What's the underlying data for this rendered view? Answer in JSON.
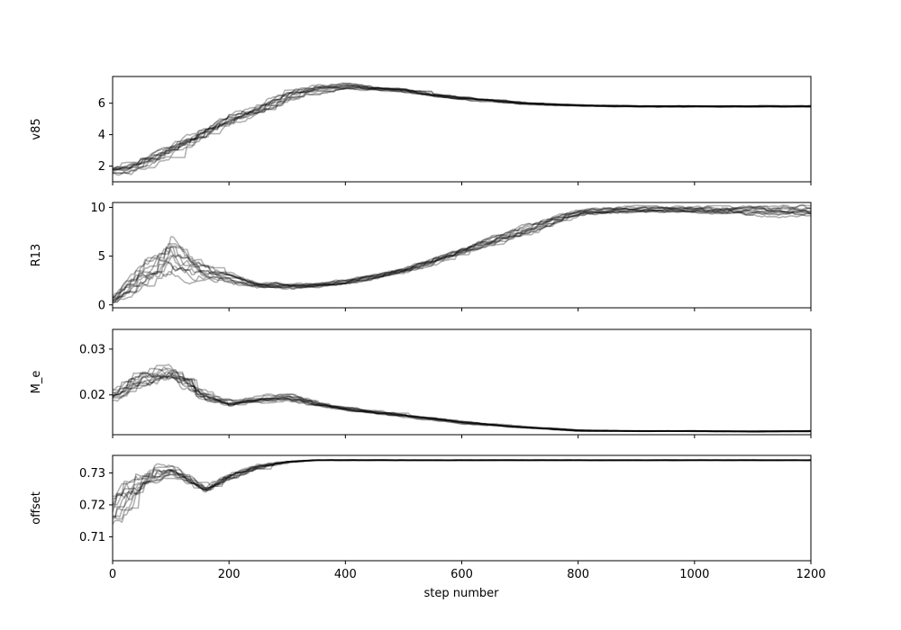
{
  "chart_data": {
    "type": "line",
    "xlabel": "step number",
    "xlim": [
      0,
      1200
    ],
    "xticks": [
      "0",
      "200",
      "400",
      "600",
      "800",
      "1000",
      "1200"
    ],
    "xtick_values": [
      0,
      200,
      400,
      600,
      800,
      1000,
      1200
    ],
    "grid": false,
    "line_color": "#000000",
    "line_alpha": 0.3,
    "n_walkers": 12,
    "panels": [
      {
        "ylabel": "v85",
        "ylim": [
          1.0,
          7.7
        ],
        "yticks": [
          "2",
          "4",
          "6"
        ],
        "ytick_values": [
          2,
          4,
          6
        ],
        "x": [
          0,
          30,
          100,
          200,
          250,
          300,
          350,
          400,
          500,
          600,
          700,
          800,
          900,
          1000,
          1100,
          1200
        ],
        "median": [
          1.7,
          1.8,
          3.0,
          5.0,
          5.6,
          6.5,
          6.9,
          7.1,
          6.8,
          6.3,
          6.0,
          5.85,
          5.8,
          5.8,
          5.8,
          5.8
        ],
        "spread": [
          0.3,
          0.5,
          0.4,
          0.4,
          0.4,
          0.4,
          0.3,
          0.2,
          0.15,
          0.12,
          0.1,
          0.06,
          0.05,
          0.05,
          0.05,
          0.05
        ]
      },
      {
        "ylabel": "R13",
        "ylim": [
          -0.3,
          10.5
        ],
        "yticks": [
          "0",
          "5",
          "10"
        ],
        "ytick_values": [
          0,
          5,
          10
        ],
        "x": [
          0,
          50,
          100,
          150,
          200,
          250,
          300,
          350,
          400,
          500,
          600,
          700,
          800,
          900,
          1000,
          1100,
          1200
        ],
        "median": [
          0.5,
          3.0,
          5.0,
          3.5,
          2.8,
          2.0,
          1.9,
          2.0,
          2.3,
          3.5,
          5.5,
          7.5,
          9.5,
          9.8,
          9.7,
          9.6,
          9.6
        ],
        "spread": [
          0.5,
          1.5,
          2.0,
          1.0,
          0.6,
          0.4,
          0.4,
          0.3,
          0.3,
          0.3,
          0.4,
          0.6,
          0.4,
          0.4,
          0.4,
          0.5,
          0.6
        ]
      },
      {
        "ylabel": "M_e",
        "ylim": [
          0.0113,
          0.0343
        ],
        "yticks": [
          "0.02",
          "0.03"
        ],
        "ytick_values": [
          0.02,
          0.03
        ],
        "x": [
          0,
          50,
          100,
          150,
          200,
          250,
          300,
          350,
          400,
          500,
          600,
          700,
          800,
          900,
          1000,
          1100,
          1200
        ],
        "median": [
          0.02,
          0.024,
          0.025,
          0.02,
          0.018,
          0.019,
          0.0195,
          0.018,
          0.017,
          0.0155,
          0.014,
          0.013,
          0.0122,
          0.0121,
          0.0121,
          0.012,
          0.0121
        ],
        "spread": [
          0.002,
          0.003,
          0.0025,
          0.0015,
          0.0007,
          0.0008,
          0.001,
          0.0006,
          0.0005,
          0.0004,
          0.0003,
          0.0002,
          0.0002,
          0.0001,
          0.0001,
          0.0001,
          0.0001
        ]
      },
      {
        "ylabel": "offset",
        "ylim": [
          0.7025,
          0.7355
        ],
        "yticks": [
          "0.71",
          "0.72",
          "0.73"
        ],
        "ytick_values": [
          0.71,
          0.72,
          0.73
        ],
        "x": [
          0,
          30,
          60,
          100,
          130,
          160,
          200,
          250,
          300,
          350,
          400,
          600,
          800,
          1000,
          1200
        ],
        "median": [
          0.718,
          0.722,
          0.729,
          0.731,
          0.728,
          0.725,
          0.729,
          0.732,
          0.7335,
          0.734,
          0.734,
          0.734,
          0.734,
          0.734,
          0.734
        ],
        "spread": [
          0.007,
          0.008,
          0.004,
          0.002,
          0.002,
          0.0015,
          0.0012,
          0.0008,
          0.0003,
          0.0001,
          0.0001,
          0.0001,
          0.0001,
          0.0001,
          0.0001
        ]
      }
    ]
  }
}
